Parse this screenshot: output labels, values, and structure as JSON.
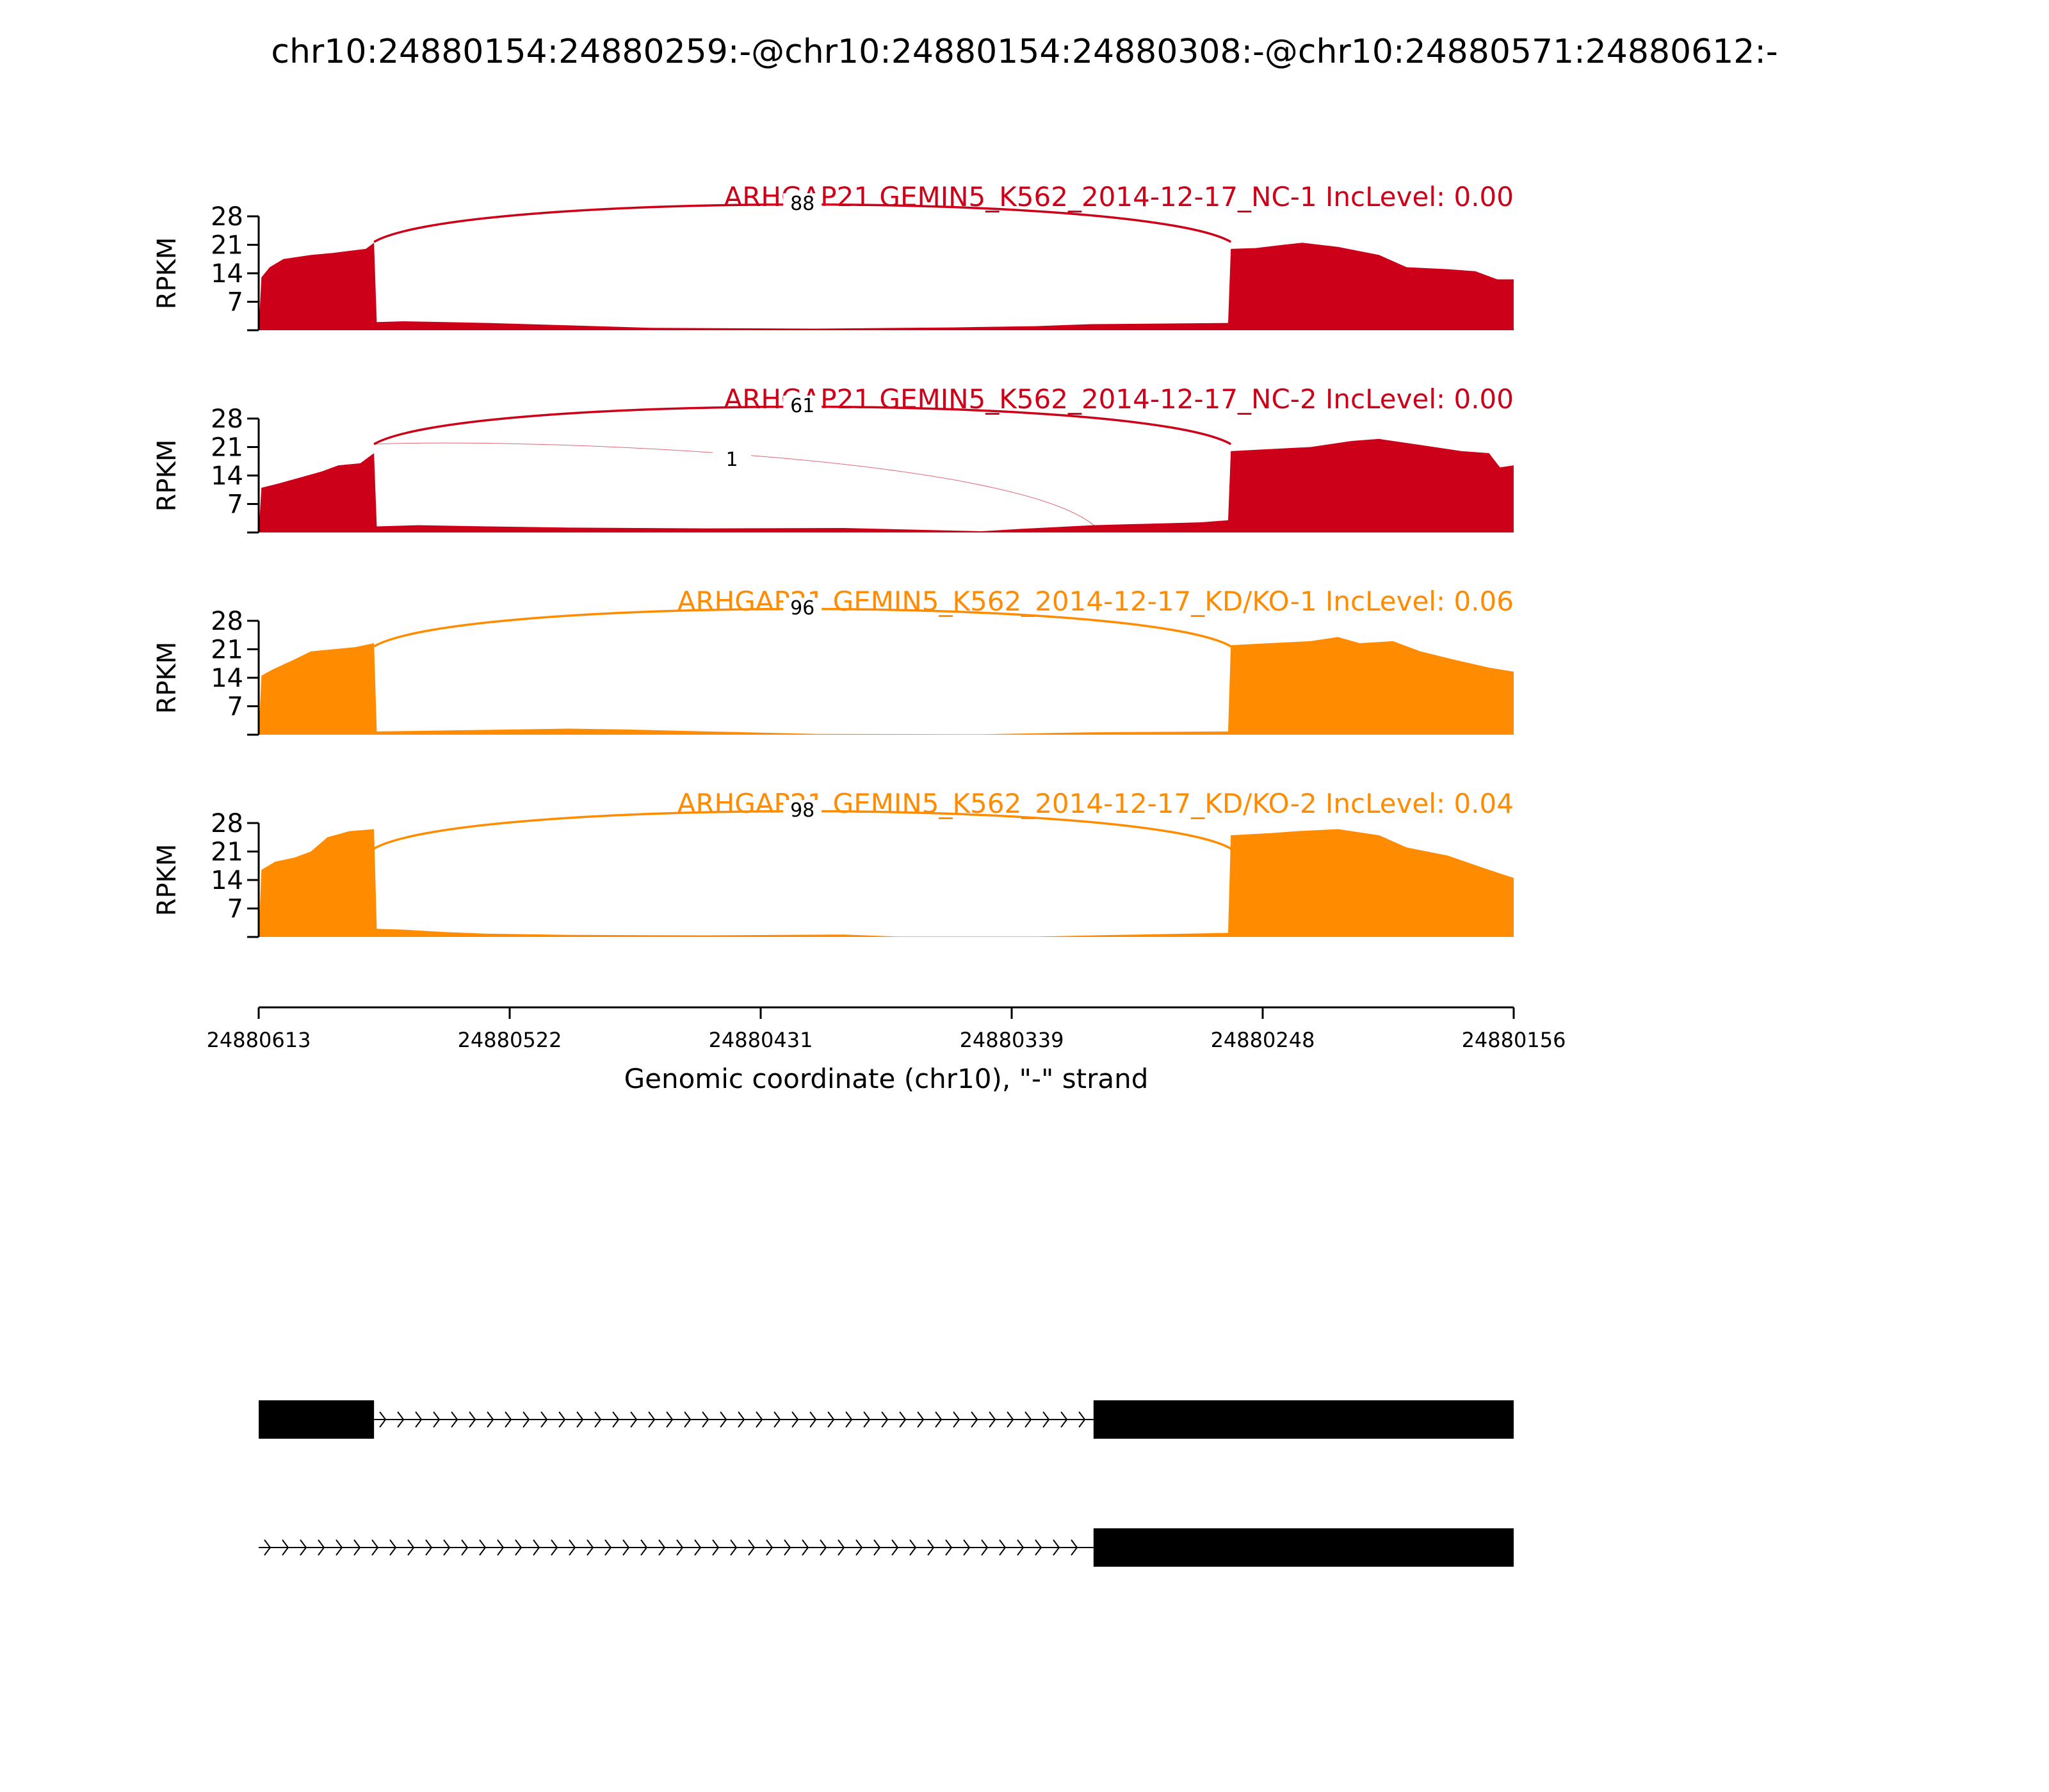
{
  "chart_data": {
    "type": "area",
    "title": "chr10:24880154:24880259:-@chr10:24880154:24880308:-@chr10:24880571:24880612:-",
    "xlabel": "Genomic coordinate (chr10), \"-\" strand",
    "x_range": [
      24880613,
      24880156
    ],
    "x_ticks": [
      "24880613",
      "24880522",
      "24880431",
      "24880339",
      "24880248",
      "24880156"
    ],
    "y_label": "RPKM",
    "y_range": [
      0,
      28
    ],
    "y_ticks": [
      "7",
      "14",
      "21",
      "28"
    ],
    "colors": {
      "nc": "#cc0018",
      "kd": "#ff8b00"
    },
    "tracks": [
      {
        "title": "ARHGAP21 GEMIN5_K562_2014-12-17_NC-1 IncLevel: 0.00",
        "color": "#cc0018",
        "coverage": [
          [
            24880613,
            0
          ],
          [
            24880612,
            13
          ],
          [
            24880609,
            15.5
          ],
          [
            24880604,
            17.5
          ],
          [
            24880594,
            18.5
          ],
          [
            24880586,
            19
          ],
          [
            24880580,
            19.5
          ],
          [
            24880574,
            20
          ],
          [
            24880571,
            21.5
          ],
          [
            24880570,
            2
          ],
          [
            24880560,
            2.2
          ],
          [
            24880545,
            2
          ],
          [
            24880530,
            1.8
          ],
          [
            24880505,
            1.3
          ],
          [
            24880470,
            0.6
          ],
          [
            24880410,
            0.4
          ],
          [
            24880360,
            0.7
          ],
          [
            24880330,
            1
          ],
          [
            24880310,
            1.5
          ],
          [
            24880260,
            1.8
          ],
          [
            24880259,
            20
          ],
          [
            24880250,
            20.2
          ],
          [
            24880240,
            21
          ],
          [
            24880233,
            21.5
          ],
          [
            24880220,
            20.5
          ],
          [
            24880205,
            18.5
          ],
          [
            24880195,
            15.5
          ],
          [
            24880180,
            15
          ],
          [
            24880170,
            14.5
          ],
          [
            24880162,
            12.5
          ],
          [
            24880156,
            12.5
          ]
        ],
        "junctions": [
          {
            "from": 24880571,
            "to": 24880259,
            "count": "88"
          }
        ]
      },
      {
        "title": "ARHGAP21 GEMIN5_K562_2014-12-17_NC-2 IncLevel: 0.00",
        "color": "#cc0018",
        "coverage": [
          [
            24880613,
            0
          ],
          [
            24880612,
            11
          ],
          [
            24880606,
            12
          ],
          [
            24880598,
            13.5
          ],
          [
            24880590,
            15
          ],
          [
            24880584,
            16.5
          ],
          [
            24880576,
            17
          ],
          [
            24880571,
            19.5
          ],
          [
            24880570,
            1.5
          ],
          [
            24880555,
            1.8
          ],
          [
            24880530,
            1.5
          ],
          [
            24880500,
            1.2
          ],
          [
            24880450,
            1
          ],
          [
            24880400,
            1.1
          ],
          [
            24880350,
            0.3
          ],
          [
            24880335,
            0.9
          ],
          [
            24880309,
            1.8
          ],
          [
            24880270,
            2.5
          ],
          [
            24880260,
            3
          ],
          [
            24880259,
            20
          ],
          [
            24880245,
            20.5
          ],
          [
            24880230,
            21
          ],
          [
            24880215,
            22.5
          ],
          [
            24880205,
            23
          ],
          [
            24880190,
            21.5
          ],
          [
            24880175,
            20
          ],
          [
            24880165,
            19.5
          ],
          [
            24880161,
            16
          ],
          [
            24880156,
            16.5
          ]
        ],
        "junctions": [
          {
            "from": 24880571,
            "to": 24880259,
            "count": "61"
          },
          {
            "from": 24880571,
            "to": 24880308,
            "count": "1"
          }
        ]
      },
      {
        "title": "ARHGAP21 GEMIN5_K562_2014-12-17_KD/KO-1 IncLevel: 0.06",
        "color": "#ff8b00",
        "coverage": [
          [
            24880613,
            0
          ],
          [
            24880612,
            14.5
          ],
          [
            24880608,
            16
          ],
          [
            24880600,
            18.5
          ],
          [
            24880594,
            20.5
          ],
          [
            24880586,
            21
          ],
          [
            24880578,
            21.5
          ],
          [
            24880571,
            22.5
          ],
          [
            24880570,
            0.8
          ],
          [
            24880540,
            1.1
          ],
          [
            24880500,
            1.5
          ],
          [
            24880480,
            1.3
          ],
          [
            24880450,
            0.8
          ],
          [
            24880410,
            0.2
          ],
          [
            24880350,
            0.1
          ],
          [
            24880310,
            0.6
          ],
          [
            24880260,
            0.8
          ],
          [
            24880259,
            22
          ],
          [
            24880245,
            22.5
          ],
          [
            24880230,
            23
          ],
          [
            24880220,
            24
          ],
          [
            24880212,
            22.5
          ],
          [
            24880200,
            23
          ],
          [
            24880190,
            20.5
          ],
          [
            24880178,
            18.5
          ],
          [
            24880165,
            16.5
          ],
          [
            24880156,
            15.5
          ]
        ],
        "junctions": [
          {
            "from": 24880571,
            "to": 24880259,
            "count": "96"
          }
        ]
      },
      {
        "title": "ARHGAP21 GEMIN5_K562_2014-12-17_KD/KO-2 IncLevel: 0.04",
        "color": "#ff8b00",
        "coverage": [
          [
            24880613,
            0
          ],
          [
            24880612,
            16.5
          ],
          [
            24880607,
            18.5
          ],
          [
            24880600,
            19.5
          ],
          [
            24880594,
            21
          ],
          [
            24880588,
            24.5
          ],
          [
            24880580,
            26
          ],
          [
            24880571,
            26.5
          ],
          [
            24880570,
            2
          ],
          [
            24880560,
            1.8
          ],
          [
            24880545,
            1.2
          ],
          [
            24880530,
            0.8
          ],
          [
            24880500,
            0.5
          ],
          [
            24880450,
            0.4
          ],
          [
            24880400,
            0.6
          ],
          [
            24880380,
            0.1
          ],
          [
            24880330,
            0.1
          ],
          [
            24880300,
            0.5
          ],
          [
            24880260,
            1
          ],
          [
            24880259,
            25
          ],
          [
            24880245,
            25.5
          ],
          [
            24880235,
            26
          ],
          [
            24880220,
            26.5
          ],
          [
            24880205,
            25
          ],
          [
            24880195,
            22
          ],
          [
            24880180,
            20
          ],
          [
            24880165,
            16.5
          ],
          [
            24880156,
            14.5
          ]
        ],
        "junctions": [
          {
            "from": 24880571,
            "to": 24880259,
            "count": "98"
          }
        ]
      }
    ],
    "gene_models": [
      {
        "exons": [
          [
            24880613,
            24880571
          ],
          [
            24880309,
            24880156
          ]
        ],
        "intron": [
          24880571,
          24880309
        ]
      },
      {
        "exons": [
          [
            24880309,
            24880156
          ]
        ],
        "intron": [
          24880613,
          24880309
        ]
      }
    ]
  }
}
